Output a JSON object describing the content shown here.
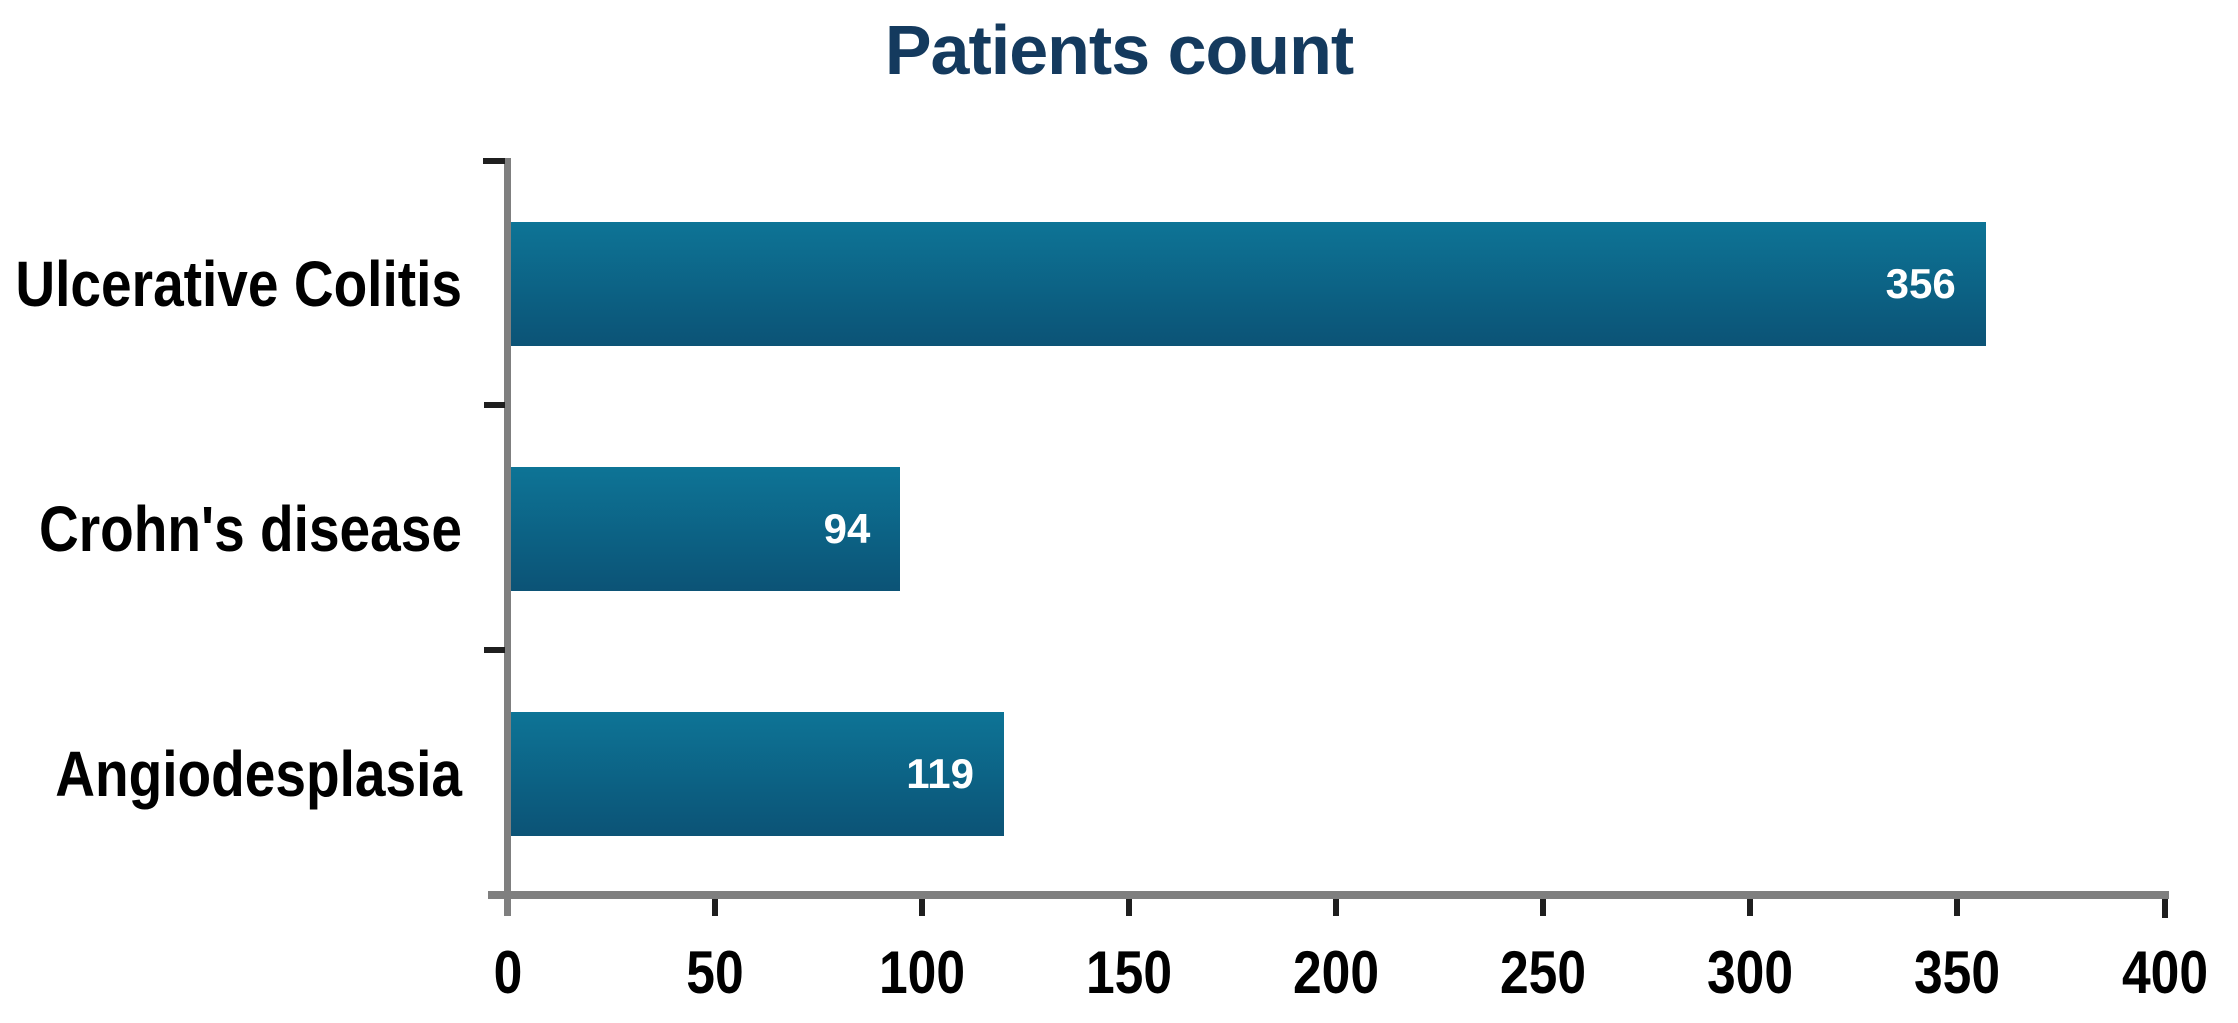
{
  "chart_data": {
    "type": "bar",
    "orientation": "horizontal",
    "title": "Patients count",
    "categories": [
      "Ulcerative Colitis",
      "Crohn's disease",
      "Angiodesplasia"
    ],
    "values": [
      356,
      94,
      119
    ],
    "xlabel": "",
    "ylabel": "",
    "xlim": [
      0,
      400
    ],
    "x_ticks": [
      0,
      50,
      100,
      150,
      200,
      250,
      300,
      350,
      400
    ],
    "grid": false,
    "legend_position": "none",
    "value_labels_shown": true,
    "colors": {
      "bar_gradient_top": "#0d7496",
      "bar_gradient_bottom": "#0c5376",
      "title_text": "#143a5e",
      "category_text": "#000000",
      "tick_label_text": "#000000",
      "value_label_text": "#ffffff",
      "axis_line": "#7f7f7f",
      "tick_mark": "#1f1f1f",
      "background": "#ffffff"
    }
  }
}
